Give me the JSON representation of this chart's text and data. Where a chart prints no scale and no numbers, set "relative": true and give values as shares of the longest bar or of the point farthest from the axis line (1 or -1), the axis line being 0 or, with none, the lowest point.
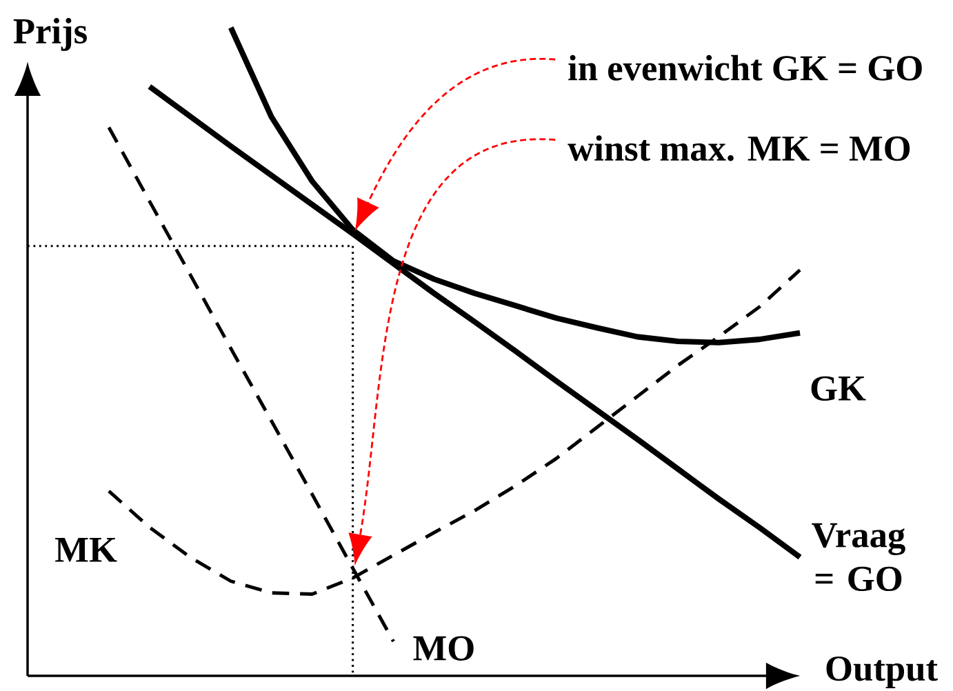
{
  "chart_data": {
    "type": "line",
    "relative": true,
    "xlabel": "Output",
    "ylabel": "Prijs",
    "categories": [
      null,
      null,
      null,
      null,
      null,
      null,
      null,
      null,
      null,
      null,
      null,
      null,
      null,
      null,
      null,
      null,
      null,
      null,
      null,
      null
    ],
    "series": [
      {
        "name": "Vraag = GO",
        "color": "#000000",
        "line_style": "solid",
        "values": [
          null,
          null,
          null,
          0.909,
          0.863,
          0.817,
          0.772,
          0.727,
          0.682,
          0.636,
          0.59,
          0.546,
          0.501,
          0.455,
          0.41,
          0.365,
          0.319,
          0.273,
          0.229,
          0.183
        ]
      },
      {
        "name": "GK",
        "color": "#000000",
        "line_style": "solid",
        "values": [
          null,
          null,
          null,
          null,
          null,
          1.0,
          0.862,
          0.763,
          0.688,
          0.64,
          0.612,
          0.59,
          0.571,
          0.552,
          0.537,
          0.523,
          0.516,
          0.514,
          0.519,
          0.529
        ]
      },
      {
        "name": "MO",
        "color": "#000000",
        "line_style": "dashed",
        "values": [
          null,
          null,
          0.846,
          0.732,
          0.619,
          0.505,
          0.393,
          0.28,
          0.166,
          0.053,
          null,
          null,
          null,
          null,
          null,
          null,
          null,
          null,
          null,
          null
        ]
      },
      {
        "name": "MK",
        "color": "#000000",
        "line_style": "dashed",
        "values": [
          null,
          null,
          0.285,
          0.229,
          0.183,
          0.146,
          0.128,
          0.126,
          0.151,
          0.186,
          0.221,
          0.255,
          0.293,
          0.335,
          0.383,
          0.431,
          0.479,
          0.523,
          0.569,
          0.626
        ]
      },
      {
        "color": "#000000",
        "line_style": "dotted",
        "values": [
          0.663,
          0.663,
          0.663,
          0.663,
          0.663,
          0.663,
          0.663,
          0.663,
          0.663,
          null,
          null,
          null,
          null,
          null,
          null,
          null,
          null,
          null,
          null,
          null
        ]
      }
    ],
    "annotations": [
      "in evenwicht GK = GO",
      "winst max. MK = MO"
    ]
  }
}
